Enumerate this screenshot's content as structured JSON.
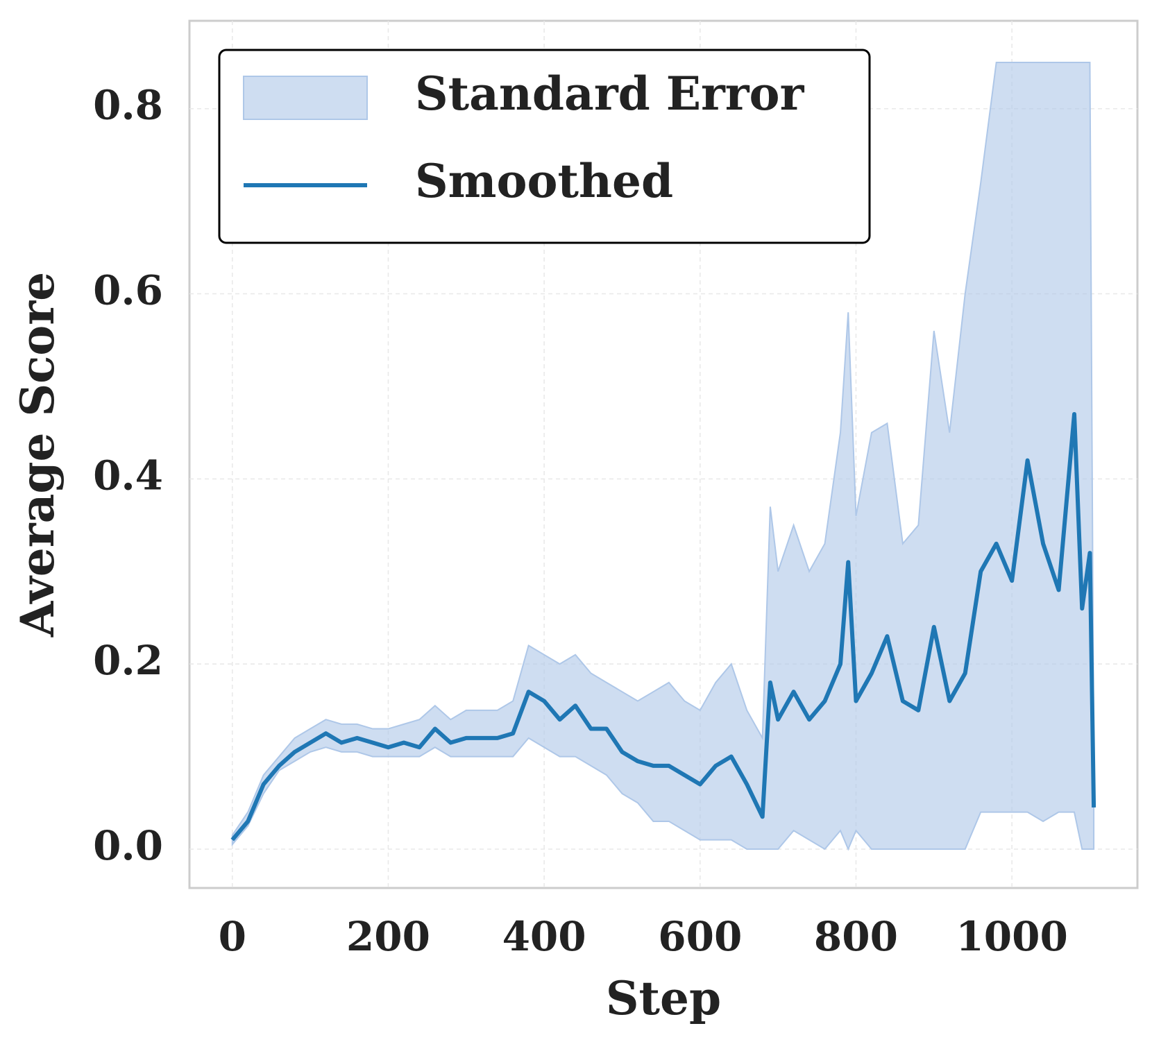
{
  "chart_data": {
    "type": "line",
    "xlabel": "Step",
    "ylabel": "Average Score",
    "x": [
      0,
      20,
      40,
      60,
      80,
      100,
      120,
      140,
      160,
      180,
      200,
      220,
      240,
      260,
      280,
      300,
      320,
      340,
      360,
      380,
      400,
      420,
      440,
      460,
      480,
      500,
      520,
      540,
      560,
      580,
      600,
      620,
      640,
      660,
      680,
      690,
      700,
      720,
      740,
      760,
      780,
      790,
      800,
      820,
      840,
      860,
      880,
      900,
      920,
      940,
      960,
      980,
      1000,
      1020,
      1040,
      1060,
      1080,
      1090,
      1100,
      1105
    ],
    "series": [
      {
        "name": "Standard Error",
        "kind": "band",
        "color": "#aec7e8",
        "lower": [
          0.005,
          0.025,
          0.06,
          0.085,
          0.095,
          0.105,
          0.11,
          0.105,
          0.105,
          0.1,
          0.1,
          0.1,
          0.1,
          0.11,
          0.1,
          0.1,
          0.1,
          0.1,
          0.1,
          0.12,
          0.11,
          0.1,
          0.1,
          0.09,
          0.08,
          0.06,
          0.05,
          0.03,
          0.03,
          0.02,
          0.01,
          0.01,
          0.01,
          0,
          0,
          0,
          0,
          0.02,
          0.01,
          0,
          0.02,
          0,
          0.02,
          0,
          0,
          0,
          0,
          0,
          0,
          0,
          0.04,
          0.04,
          0.04,
          0.04,
          0.03,
          0.04,
          0.04,
          0,
          0,
          0
        ],
        "upper": [
          0.015,
          0.04,
          0.08,
          0.1,
          0.12,
          0.13,
          0.14,
          0.135,
          0.135,
          0.13,
          0.13,
          0.135,
          0.14,
          0.155,
          0.14,
          0.15,
          0.15,
          0.15,
          0.16,
          0.22,
          0.21,
          0.2,
          0.21,
          0.19,
          0.18,
          0.17,
          0.16,
          0.17,
          0.18,
          0.16,
          0.15,
          0.18,
          0.2,
          0.15,
          0.12,
          0.37,
          0.3,
          0.35,
          0.3,
          0.33,
          0.45,
          0.58,
          0.36,
          0.45,
          0.46,
          0.33,
          0.35,
          0.56,
          0.45,
          0.6,
          0.72,
          0.85,
          0.85,
          0.85,
          0.85,
          0.85,
          0.85,
          0.85,
          0.85,
          0.1
        ]
      },
      {
        "name": "Smoothed",
        "kind": "line",
        "color": "#1f77b4",
        "values": [
          0.01,
          0.03,
          0.07,
          0.09,
          0.105,
          0.115,
          0.125,
          0.115,
          0.12,
          0.115,
          0.11,
          0.115,
          0.11,
          0.13,
          0.115,
          0.12,
          0.12,
          0.12,
          0.125,
          0.17,
          0.16,
          0.14,
          0.155,
          0.13,
          0.13,
          0.105,
          0.095,
          0.09,
          0.09,
          0.08,
          0.07,
          0.09,
          0.1,
          0.07,
          0.035,
          0.18,
          0.14,
          0.17,
          0.14,
          0.16,
          0.2,
          0.31,
          0.16,
          0.19,
          0.23,
          0.16,
          0.15,
          0.24,
          0.16,
          0.19,
          0.3,
          0.33,
          0.29,
          0.42,
          0.33,
          0.28,
          0.47,
          0.26,
          0.32,
          0.045
        ]
      }
    ],
    "xlim": [
      -55,
      1161
    ],
    "ylim": [
      -0.042,
      0.895
    ],
    "xticks": [
      0,
      200,
      400,
      600,
      800,
      1000
    ],
    "yticks": [
      {
        "value": 0,
        "label": "0.0"
      },
      0.2,
      0.4,
      0.6,
      0.8
    ],
    "grid": true,
    "legend": "upper left"
  }
}
